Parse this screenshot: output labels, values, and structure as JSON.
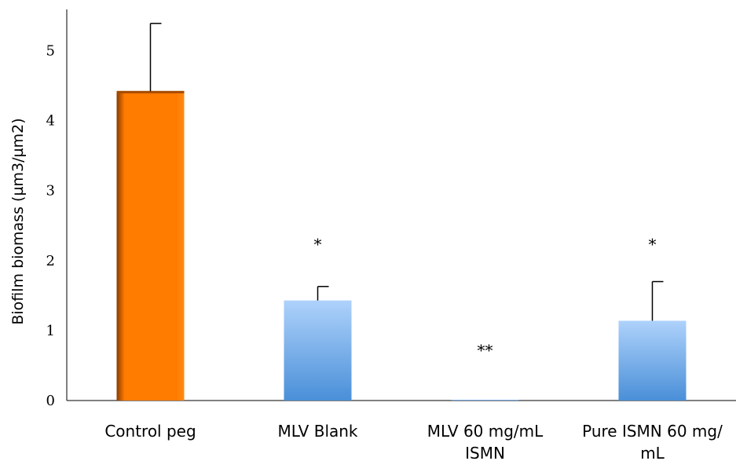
{
  "chart_data": {
    "type": "bar",
    "title": "",
    "xlabel": "",
    "ylabel": "Biofilm biomass (µm3/µm2)",
    "ylim": [
      0,
      5.5
    ],
    "yticks": [
      "0",
      "1",
      "2",
      "3",
      "4",
      "5"
    ],
    "grid": false,
    "categories": [
      [
        "Control peg"
      ],
      [
        "MLV Blank"
      ],
      [
        "MLV 60 mg/mL",
        "ISMN"
      ],
      [
        "Pure ISMN 60 mg/",
        "mL"
      ]
    ],
    "values": [
      4.42,
      1.43,
      0.01,
      1.14
    ],
    "error_upper": [
      0.97,
      0.2,
      0.0,
      0.56
    ],
    "significance": [
      "",
      "*",
      "**",
      "*"
    ],
    "colors": {
      "control_top": "#ff8c1a",
      "control_bottom": "#ff7a00",
      "control_edge": "#a34a00",
      "blue_top": "#a9cffb",
      "blue_bottom": "#4a8fd8"
    }
  }
}
